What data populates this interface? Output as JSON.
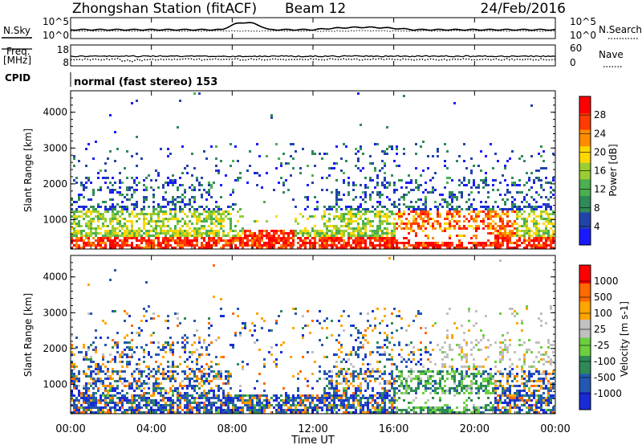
{
  "header": {
    "title": "Zhongshan Station (fitACF)",
    "beam": "Beam 12",
    "date": "24/Feb/2016"
  },
  "top_panels": {
    "nsky_label": "N.Sky",
    "nsky_ticks": [
      "10^5",
      "10^0"
    ],
    "nsearch_label": "N.Search",
    "nsearch_ticks": [
      "10^5",
      "10^0"
    ],
    "freq_label_1": "Freq.",
    "freq_label_2": "[MHz]",
    "freq_ticks": [
      "18",
      "8"
    ],
    "nave_label": "Nave",
    "nave_ticks": [
      "60",
      "0"
    ],
    "cpid_label": "CPID",
    "cpid_text": "normal (fast stereo) 153"
  },
  "chart_data": [
    {
      "type": "heatmap",
      "title": "",
      "ylabel": "Slant Range [km]",
      "ylim": [
        180,
        4600
      ],
      "yticks": [
        "1000",
        "2000",
        "3000",
        "4000"
      ],
      "xlabel": "",
      "xlim": [
        "00:00",
        "24:00"
      ],
      "colorbar": {
        "label": "Power [dB]",
        "ticks": [
          "4",
          "8",
          "12",
          "16",
          "20",
          "24",
          "28"
        ],
        "colors": [
          "#1a1aff",
          "#2244aa",
          "#2e8b57",
          "#4caf50",
          "#9acd32",
          "#ffd700",
          "#ff8c00",
          "#ff3b00",
          "#ff0000"
        ]
      }
    },
    {
      "type": "heatmap",
      "title": "",
      "ylabel": "Slant Range [km]",
      "ylim": [
        180,
        4600
      ],
      "yticks": [
        "1000",
        "2000",
        "3000",
        "4000"
      ],
      "xlabel": "Time UT",
      "xlim": [
        "00:00",
        "24:00"
      ],
      "xticks": [
        "00:00",
        "04:00",
        "08:00",
        "12:00",
        "16:00",
        "20:00",
        "00:00"
      ],
      "colorbar": {
        "label": "Velocity [m s-1]",
        "ticks": [
          "1000",
          "500",
          "100",
          "25",
          "-25",
          "-100",
          "-500",
          "-1000"
        ],
        "colors": [
          "#1a2bd6",
          "#2458b0",
          "#2e8b57",
          "#6ccf3f",
          "#c0c0c0",
          "#ffa500",
          "#ff6a00",
          "#ff0000"
        ]
      }
    }
  ]
}
